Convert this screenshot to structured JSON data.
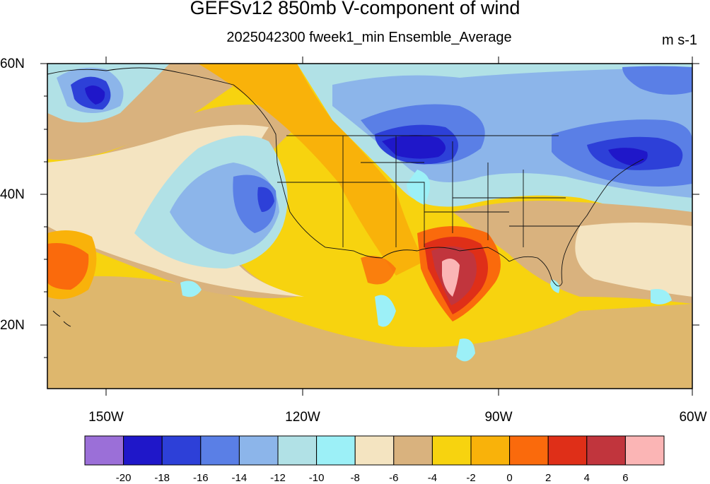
{
  "title": "GEFSv12 850mb V-component of wind",
  "subtitle": "2025042300 fweek1_min Ensemble_Average",
  "units": "m s-1",
  "lat_labels": [
    "60N",
    "40N",
    "20N"
  ],
  "lon_labels": [
    "150W",
    "120W",
    "90W",
    "60W"
  ],
  "colorbar": {
    "labels": [
      "-20",
      "-18",
      "-16",
      "-14",
      "-12",
      "-10",
      "-8",
      "-6",
      "-4",
      "-2",
      "0",
      "2",
      "4",
      "6"
    ],
    "colors": [
      "#9b6fd8",
      "#1f17c9",
      "#2d40d8",
      "#5a7fe6",
      "#8cb5ea",
      "#b1e1e6",
      "#9cf0f7",
      "#f4e4c1",
      "#d9b27e",
      "#f7d30f",
      "#f9b20a",
      "#fa6a0c",
      "#df2f18",
      "#c1353d",
      "#fbb5b5"
    ]
  },
  "map": {
    "region": "North Pacific / North America",
    "lat_range": [
      10,
      60
    ],
    "lon_range": [
      -160,
      -60
    ],
    "field": "850mb V-component of wind",
    "features": [
      "US state boundaries",
      "coastlines",
      "Hawaii",
      "Gulf of Mexico"
    ]
  }
}
